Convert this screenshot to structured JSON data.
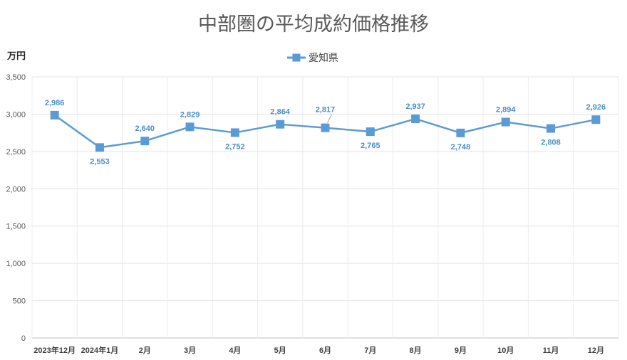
{
  "chart_data": {
    "type": "line",
    "title": "中部圏の平均成約価格推移",
    "unit_label": "万円",
    "categories": [
      "2023年12月",
      "2024年1月",
      "2月",
      "3月",
      "4月",
      "5月",
      "6月",
      "7月",
      "8月",
      "9月",
      "10月",
      "11月",
      "12月"
    ],
    "series": [
      {
        "name": "愛知県",
        "values": [
          2986,
          2553,
          2640,
          2829,
          2752,
          2864,
          2817,
          2765,
          2937,
          2748,
          2894,
          2808,
          2926
        ],
        "data_labels": [
          "2,986",
          "2,553",
          "2,640",
          "2,829",
          "2,752",
          "2,864",
          "2,817",
          "2,765",
          "2,937",
          "2,748",
          "2,894",
          "2,808",
          "2,926"
        ],
        "color": "#5b9bd5",
        "label_color": "#4a8fcc",
        "marker": "square"
      }
    ],
    "y_ticks": [
      "0",
      "500",
      "1,000",
      "1,500",
      "2,000",
      "2,500",
      "3,000",
      "3,500"
    ],
    "ylim": [
      0,
      3500
    ],
    "grid": true,
    "legend_position": "top"
  }
}
